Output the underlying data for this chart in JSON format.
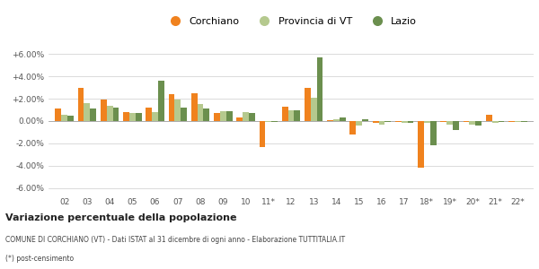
{
  "years": [
    "02",
    "03",
    "04",
    "05",
    "06",
    "07",
    "08",
    "09",
    "10",
    "11*",
    "12",
    "13",
    "14",
    "15",
    "16",
    "17",
    "18*",
    "19*",
    "20*",
    "21*",
    "22*"
  ],
  "corchiano": [
    1.1,
    3.0,
    1.9,
    0.8,
    1.2,
    2.4,
    2.5,
    0.7,
    0.3,
    -2.3,
    1.3,
    3.0,
    0.1,
    -1.2,
    -0.2,
    -0.1,
    -4.2,
    -0.1,
    -0.1,
    0.6,
    -0.05
  ],
  "provincia_vt": [
    0.6,
    1.6,
    1.4,
    0.7,
    0.8,
    1.9,
    1.5,
    0.9,
    0.8,
    -0.05,
    1.0,
    2.1,
    0.2,
    -0.4,
    -0.3,
    -0.2,
    -0.15,
    -0.3,
    -0.3,
    -0.2,
    -0.1
  ],
  "lazio": [
    0.5,
    1.1,
    1.2,
    0.75,
    3.6,
    1.2,
    1.1,
    0.85,
    0.7,
    -0.1,
    1.0,
    5.7,
    0.3,
    0.2,
    -0.1,
    -0.15,
    -2.2,
    -0.8,
    -0.4,
    -0.1,
    -0.05
  ],
  "color_corchiano": "#f0821e",
  "color_provincia": "#b5c98e",
  "color_lazio": "#6b8f4e",
  "background_color": "#ffffff",
  "grid_color": "#cccccc",
  "ylim": [
    -6.5,
    6.5
  ],
  "yticks": [
    -6.0,
    -4.0,
    -2.0,
    0.0,
    2.0,
    4.0,
    6.0
  ],
  "title": "Variazione percentuale della popolazione",
  "subtitle": "COMUNE DI CORCHIANO (VT) - Dati ISTAT al 31 dicembre di ogni anno - Elaborazione TUTTITALIA.IT",
  "footnote": "(*) post-censimento",
  "legend_labels": [
    "Corchiano",
    "Provincia di VT",
    "Lazio"
  ]
}
